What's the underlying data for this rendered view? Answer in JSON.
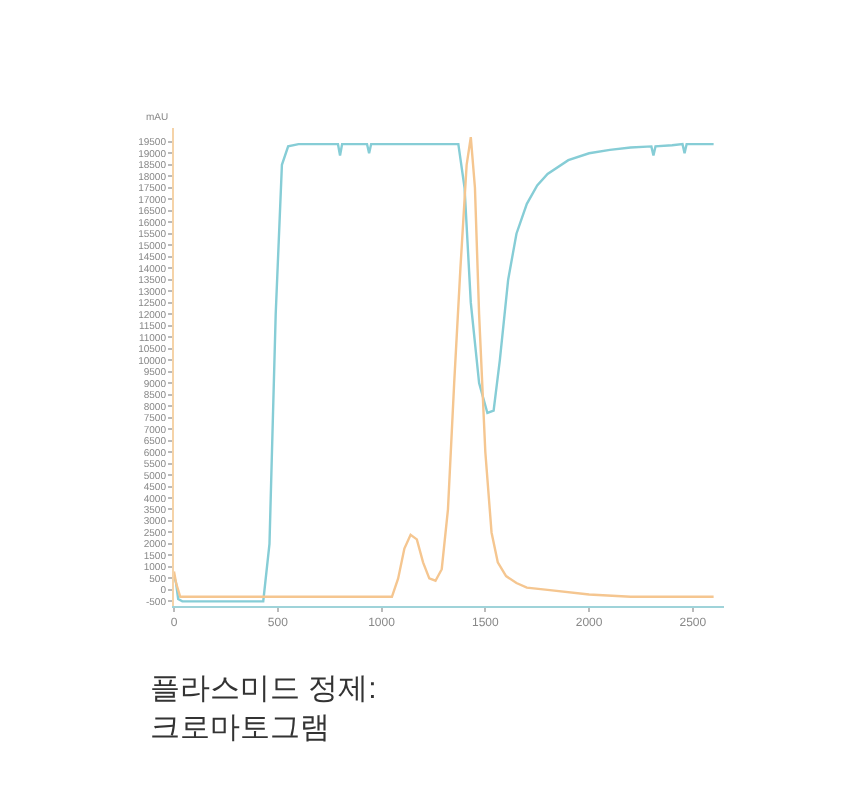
{
  "chart_data": {
    "type": "line",
    "ylabel": "mAU",
    "annotations": [
      "플라스미드 정제:\n크로마토그램"
    ],
    "series": [
      {
        "color": "#86cdd6",
        "x": [
          0,
          10,
          20,
          40,
          100,
          300,
          430,
          460,
          490,
          520,
          550,
          600,
          700,
          790,
          800,
          810,
          900,
          930,
          940,
          950,
          1100,
          1300,
          1370,
          1400,
          1430,
          1470,
          1510,
          1540,
          1570,
          1610,
          1650,
          1700,
          1750,
          1800,
          1900,
          2000,
          2100,
          2200,
          2300,
          2310,
          2320,
          2400,
          2450,
          2460,
          2470,
          2600
        ],
        "values": [
          600,
          300,
          -400,
          -500,
          -500,
          -500,
          -500,
          2000,
          12000,
          18500,
          19300,
          19400,
          19400,
          19400,
          18900,
          19400,
          19400,
          19400,
          19000,
          19400,
          19400,
          19400,
          19400,
          17500,
          12500,
          9000,
          7700,
          7800,
          10000,
          13500,
          15500,
          16800,
          17600,
          18100,
          18700,
          19000,
          19150,
          19250,
          19300,
          18900,
          19300,
          19350,
          19400,
          19000,
          19400,
          19400
        ]
      },
      {
        "color": "#f5c690",
        "x": [
          0,
          10,
          30,
          60,
          300,
          600,
          900,
          1050,
          1080,
          1110,
          1140,
          1170,
          1200,
          1230,
          1260,
          1290,
          1320,
          1350,
          1380,
          1410,
          1430,
          1450,
          1470,
          1500,
          1530,
          1560,
          1600,
          1650,
          1700,
          1800,
          2000,
          2200,
          2400,
          2600
        ],
        "values": [
          800,
          300,
          -300,
          -300,
          -300,
          -300,
          -300,
          -300,
          500,
          1800,
          2400,
          2200,
          1200,
          500,
          400,
          900,
          3500,
          9000,
          14000,
          18500,
          19700,
          17500,
          12000,
          6000,
          2500,
          1200,
          600,
          300,
          100,
          0,
          -200,
          -300,
          -300,
          -300
        ]
      }
    ],
    "xlim": [
      0,
      2650
    ],
    "xticks": [
      0,
      500,
      1000,
      1500,
      2000,
      2500
    ],
    "ylim": [
      -700,
      20100
    ],
    "yticks": [
      -500,
      0,
      500,
      1000,
      1500,
      2000,
      2500,
      3000,
      3500,
      4000,
      4500,
      5000,
      5500,
      6000,
      6500,
      7000,
      7500,
      8000,
      8500,
      9000,
      9500,
      10000,
      10500,
      11000,
      11500,
      12000,
      12500,
      13000,
      13500,
      14000,
      14500,
      15000,
      15500,
      16000,
      16500,
      17000,
      17500,
      18000,
      18500,
      19000,
      19500
    ],
    "marker": "none",
    "line_style": "solid"
  }
}
